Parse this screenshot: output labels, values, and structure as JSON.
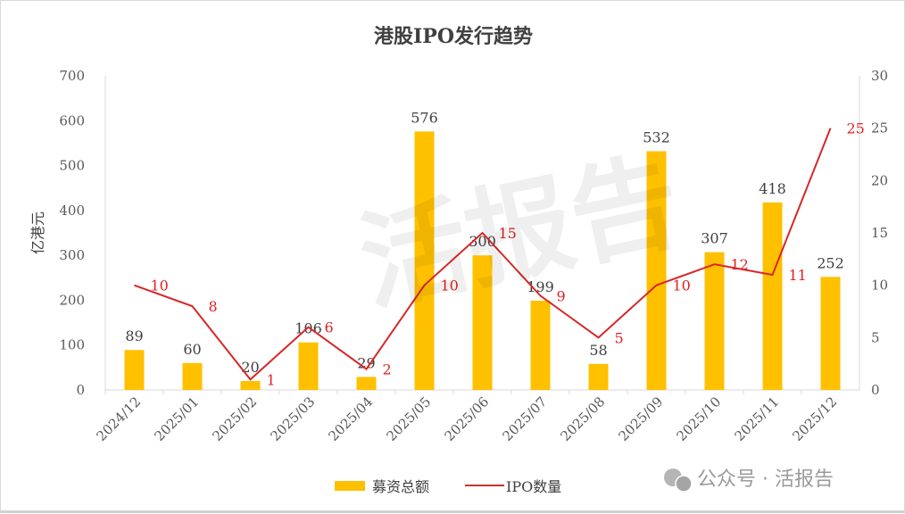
{
  "chart_data": {
    "type": "bar+line",
    "title": "港股IPO发行趋势",
    "categories": [
      "2024/12",
      "2025/01",
      "2025/02",
      "2025/03",
      "2025/04",
      "2025/05",
      "2025/06",
      "2025/07",
      "2025/08",
      "2025/09",
      "2025/10",
      "2025/11",
      "2025/12"
    ],
    "series": [
      {
        "name": "募资总额",
        "type": "bar",
        "axis": "left",
        "color": "#FFC000",
        "values": [
          89,
          60,
          20,
          106,
          29,
          576,
          300,
          199,
          58,
          532,
          307,
          418,
          252
        ]
      },
      {
        "name": "IPO数量",
        "type": "line",
        "axis": "right",
        "color": "#D62728",
        "values": [
          10,
          8,
          1,
          6,
          2,
          10,
          15,
          9,
          5,
          10,
          12,
          11,
          25
        ]
      }
    ],
    "ylabel": "亿港元",
    "ylim": [
      0,
      700
    ],
    "yticks": [
      0,
      100,
      200,
      300,
      400,
      500,
      600,
      700
    ],
    "y2lim": [
      0,
      30
    ],
    "y2ticks": [
      0,
      5,
      10,
      15,
      20,
      25,
      30
    ],
    "grid": false,
    "legend_position": "bottom",
    "data_label_color": "#E02020"
  },
  "watermark": {
    "center": "活报告 LiveReport",
    "corner": "公众号 · 活报告"
  }
}
